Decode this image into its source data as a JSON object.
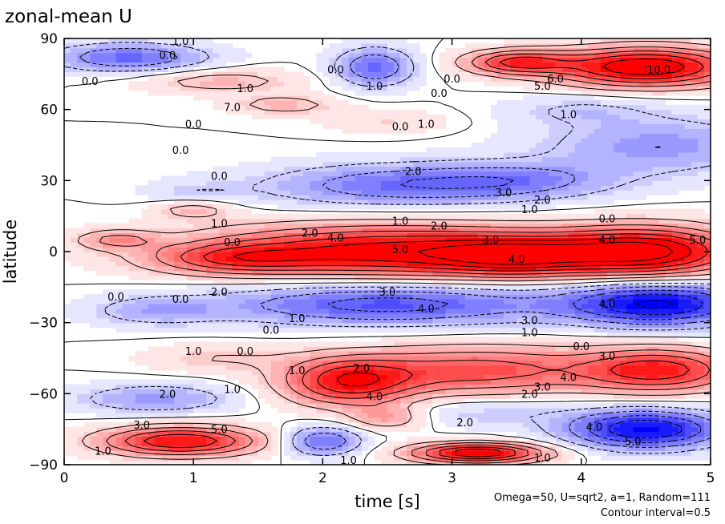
{
  "chart_data": {
    "type": "heatmap",
    "title": "zonal-mean U",
    "xlabel": "time [s]",
    "ylabel": "latitude",
    "xlim": [
      0,
      5
    ],
    "ylim": [
      -90,
      90
    ],
    "x_ticks": [
      "0",
      "1",
      "2",
      "3",
      "4",
      "5"
    ],
    "y_ticks": [
      "90",
      "60",
      "30",
      "0",
      "−30",
      "−60",
      "−90"
    ],
    "notes": [
      "Omega=50, U=sqrt2, a=1, Random=111",
      "Contour interval=0.5"
    ],
    "colors": {
      "positive": "#ff0000",
      "negative": "#0000ff",
      "neutral": "#ffffff"
    },
    "features": [
      {
        "t": 2.5,
        "lat": 0,
        "u": 5.5,
        "wt": 1.4,
        "wl": 11
      },
      {
        "t": 4.5,
        "lat": 0,
        "u": 6.0,
        "wt": 0.7,
        "wl": 10
      },
      {
        "t": 3.5,
        "lat": -2,
        "u": 3.5,
        "wt": 0.6,
        "wl": 8
      },
      {
        "t": 1.3,
        "lat": -3,
        "u": 2.5,
        "wt": 0.6,
        "wl": 6
      },
      {
        "t": 0.4,
        "lat": 5,
        "u": 2.0,
        "wt": 0.3,
        "wl": 4
      },
      {
        "t": 2.5,
        "lat": -22,
        "u": -3.5,
        "wt": 1.3,
        "wl": 9
      },
      {
        "t": 4.6,
        "lat": -22,
        "u": -5.0,
        "wt": 0.7,
        "wl": 9
      },
      {
        "t": 0.7,
        "lat": -25,
        "u": -1.5,
        "wt": 0.5,
        "wl": 6
      },
      {
        "t": 2.5,
        "lat": 28,
        "u": -2.5,
        "wt": 1.0,
        "wl": 9
      },
      {
        "t": 4.6,
        "lat": 45,
        "u": -2.0,
        "wt": 0.9,
        "wl": 12
      },
      {
        "t": 3.5,
        "lat": 30,
        "u": -2.0,
        "wt": 0.8,
        "wl": 8
      },
      {
        "t": 1.0,
        "lat": 25,
        "u": -0.8,
        "wt": 0.4,
        "wl": 5
      },
      {
        "t": 2.2,
        "lat": -55,
        "u": 4.5,
        "wt": 0.5,
        "wl": 10
      },
      {
        "t": 3.2,
        "lat": -50,
        "u": 3.5,
        "wt": 0.9,
        "wl": 10
      },
      {
        "t": 4.6,
        "lat": -50,
        "u": 4.5,
        "wt": 0.6,
        "wl": 9
      },
      {
        "t": 1.2,
        "lat": -45,
        "u": 1.0,
        "wt": 0.6,
        "wl": 6
      },
      {
        "t": 0.7,
        "lat": -62,
        "u": -2.0,
        "wt": 0.6,
        "wl": 6
      },
      {
        "t": 3.2,
        "lat": -68,
        "u": -1.0,
        "wt": 0.8,
        "wl": 6
      },
      {
        "t": 0.9,
        "lat": -80,
        "u": 5.0,
        "wt": 0.6,
        "wl": 6
      },
      {
        "t": 2.0,
        "lat": -80,
        "u": -3.0,
        "wt": 0.3,
        "wl": 6
      },
      {
        "t": 3.2,
        "lat": -85,
        "u": 6.0,
        "wt": 0.5,
        "wl": 4
      },
      {
        "t": 4.5,
        "lat": -75,
        "u": -5.0,
        "wt": 0.6,
        "wl": 8
      },
      {
        "t": 2.5,
        "lat": -70,
        "u": 2.0,
        "wt": 0.3,
        "wl": 5
      },
      {
        "t": 0.5,
        "lat": 82,
        "u": -3.0,
        "wt": 0.6,
        "wl": 6
      },
      {
        "t": 2.4,
        "lat": 78,
        "u": -3.0,
        "wt": 0.3,
        "wl": 8
      },
      {
        "t": 3.5,
        "lat": 80,
        "u": 4.0,
        "wt": 0.4,
        "wl": 5
      },
      {
        "t": 4.5,
        "lat": 78,
        "u": 6.0,
        "wt": 0.7,
        "wl": 8
      },
      {
        "t": 1.2,
        "lat": 72,
        "u": 1.5,
        "wt": 0.6,
        "wl": 5
      },
      {
        "t": 1.7,
        "lat": 62,
        "u": 1.5,
        "wt": 0.4,
        "wl": 4
      },
      {
        "t": 1.0,
        "lat": 18,
        "u": 1.5,
        "wt": 0.3,
        "wl": 4
      },
      {
        "t": 4.0,
        "lat": 60,
        "u": -1.0,
        "wt": 0.6,
        "wl": 6
      },
      {
        "t": 2.5,
        "lat": 55,
        "u": 0.8,
        "wt": 0.5,
        "wl": 5
      }
    ],
    "labels": [
      {
        "t": 2.6,
        "lat": 1,
        "text": "5.0"
      },
      {
        "t": 4.9,
        "lat": 5,
        "text": "5.0"
      },
      {
        "t": 2.1,
        "lat": 6,
        "text": "4.0"
      },
      {
        "t": 4.2,
        "lat": 5,
        "text": "4.0"
      },
      {
        "t": 3.5,
        "lat": -3,
        "text": "4.0"
      },
      {
        "t": 3.3,
        "lat": 5,
        "text": "3.0"
      },
      {
        "t": 2.9,
        "lat": 11,
        "text": "2.0"
      },
      {
        "t": 2.6,
        "lat": 13,
        "text": "1.0"
      },
      {
        "t": 4.2,
        "lat": 14,
        "text": "0.0"
      },
      {
        "t": 3.6,
        "lat": 18,
        "text": "1.0"
      },
      {
        "t": 3.7,
        "lat": 22,
        "text": "2.0"
      },
      {
        "t": 3.4,
        "lat": 25,
        "text": "3.0"
      },
      {
        "t": 2.7,
        "lat": 34,
        "text": "2.0"
      },
      {
        "t": 1.2,
        "lat": 32,
        "text": "0.0"
      },
      {
        "t": 1.2,
        "lat": 12,
        "text": "1.0"
      },
      {
        "t": 1.3,
        "lat": 4,
        "text": "0.0"
      },
      {
        "t": 2.5,
        "lat": -17,
        "text": "3.0"
      },
      {
        "t": 2.8,
        "lat": -24,
        "text": "4.0"
      },
      {
        "t": 4.2,
        "lat": -22,
        "text": "4.0"
      },
      {
        "t": 3.6,
        "lat": -29,
        "text": "3.0"
      },
      {
        "t": 3.6,
        "lat": -34,
        "text": "1.0"
      },
      {
        "t": 4.0,
        "lat": -40,
        "text": "0.0"
      },
      {
        "t": 1.8,
        "lat": -28,
        "text": "1.0"
      },
      {
        "t": 1.6,
        "lat": -33,
        "text": "0.0"
      },
      {
        "t": 1.4,
        "lat": -42,
        "text": "0.0"
      },
      {
        "t": 1.0,
        "lat": -42,
        "text": "1.0"
      },
      {
        "t": 2.3,
        "lat": -49,
        "text": "2.0"
      },
      {
        "t": 1.8,
        "lat": -50,
        "text": "1.0"
      },
      {
        "t": 4.2,
        "lat": -44,
        "text": "3.0"
      },
      {
        "t": 3.9,
        "lat": -53,
        "text": "4.0"
      },
      {
        "t": 2.4,
        "lat": -61,
        "text": "4.0"
      },
      {
        "t": 3.7,
        "lat": -57,
        "text": "3.0"
      },
      {
        "t": 3.6,
        "lat": -60,
        "text": "2.0"
      },
      {
        "t": 1.3,
        "lat": -58,
        "text": "1.0"
      },
      {
        "t": 0.8,
        "lat": -60,
        "text": "2.0"
      },
      {
        "t": 0.6,
        "lat": -73,
        "text": "3.0"
      },
      {
        "t": 1.2,
        "lat": -75,
        "text": "5.0"
      },
      {
        "t": 0.3,
        "lat": -84,
        "text": "1.0"
      },
      {
        "t": 2.2,
        "lat": -88,
        "text": "1.0"
      },
      {
        "t": 3.1,
        "lat": -72,
        "text": "2.0"
      },
      {
        "t": 3.7,
        "lat": -87,
        "text": "1.0"
      },
      {
        "t": 4.1,
        "lat": -74,
        "text": "4.0"
      },
      {
        "t": 4.4,
        "lat": -80,
        "text": "5.0"
      },
      {
        "t": 0.4,
        "lat": -19,
        "text": "0.0"
      },
      {
        "t": 0.9,
        "lat": -20,
        "text": "0.0"
      },
      {
        "t": 1.2,
        "lat": -17,
        "text": "2.0"
      },
      {
        "t": 1.9,
        "lat": 8,
        "text": "2.0"
      },
      {
        "t": 2.6,
        "lat": 53,
        "text": "0.0"
      },
      {
        "t": 2.8,
        "lat": 54,
        "text": "1.0"
      },
      {
        "t": 1.0,
        "lat": 54,
        "text": "0.0"
      },
      {
        "t": 0.9,
        "lat": 43,
        "text": "0.0"
      },
      {
        "t": 1.4,
        "lat": 69,
        "text": "1.0"
      },
      {
        "t": 2.9,
        "lat": 67,
        "text": "0.0"
      },
      {
        "t": 2.4,
        "lat": 70,
        "text": "1.0"
      },
      {
        "t": 1.3,
        "lat": 61,
        "text": "7.0"
      },
      {
        "t": 3.9,
        "lat": 58,
        "text": "1.0"
      },
      {
        "t": 3.7,
        "lat": 70,
        "text": "5.0"
      },
      {
        "t": 3.8,
        "lat": 73,
        "text": "6.0"
      },
      {
        "t": 4.6,
        "lat": 77,
        "text": "10.0"
      },
      {
        "t": 0.2,
        "lat": 72,
        "text": "0.0"
      },
      {
        "t": 0.9,
        "lat": 89,
        "text": "1.0"
      },
      {
        "t": 2.1,
        "lat": 77,
        "text": "0.0"
      },
      {
        "t": 3.0,
        "lat": 73,
        "text": "0.0"
      },
      {
        "t": 0.8,
        "lat": 83,
        "text": "0.0"
      }
    ]
  }
}
